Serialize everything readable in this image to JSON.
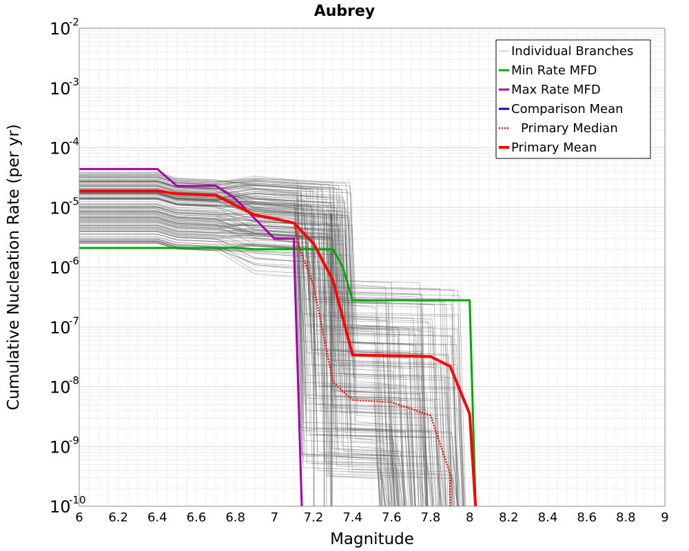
{
  "chart_data": {
    "type": "line",
    "title": "Aubrey",
    "xlabel": "Magnitude",
    "ylabel": "Cumulative Nucleation Rate (per yr)",
    "xlim": [
      6,
      9
    ],
    "ylim": [
      1e-10,
      0.01
    ],
    "yscale": "log",
    "grid": true,
    "legend_position": "top-right",
    "x_ticks": [
      "6",
      "6.2",
      "6.4",
      "6.6",
      "6.8",
      "7",
      "7.2",
      "7.4",
      "7.6",
      "7.8",
      "8",
      "8.2",
      "8.4",
      "8.6",
      "8.8",
      "9"
    ],
    "y_ticks": [
      {
        "base": "10",
        "exp": "-10",
        "value": 1e-10
      },
      {
        "base": "10",
        "exp": "-9",
        "value": 1e-09
      },
      {
        "base": "10",
        "exp": "-8",
        "value": 1e-08
      },
      {
        "base": "10",
        "exp": "-7",
        "value": 1e-07
      },
      {
        "base": "10",
        "exp": "-6",
        "value": 1e-06
      },
      {
        "base": "10",
        "exp": "-5",
        "value": 1e-05
      },
      {
        "base": "10",
        "exp": "-4",
        "value": 0.0001
      },
      {
        "base": "10",
        "exp": "-3",
        "value": 0.001
      },
      {
        "base": "10",
        "exp": "-2",
        "value": 0.01
      }
    ],
    "series": [
      {
        "name": "Individual Branches",
        "color": "#555555",
        "style": "thin",
        "note": "many overlapping branch curves",
        "envelope_upper": [
          [
            6.0,
            4e-05
          ],
          [
            6.4,
            4e-05
          ],
          [
            6.5,
            3.1e-05
          ],
          [
            6.7,
            3.1e-05
          ],
          [
            6.9,
            1e-05
          ],
          [
            7.2,
            1e-05
          ],
          [
            7.3,
            8e-06
          ],
          [
            7.35,
            6e-07
          ],
          [
            7.9,
            6e-07
          ],
          [
            8.0,
            1e-10
          ]
        ],
        "envelope_lower": [
          [
            6.0,
            2.5e-06
          ],
          [
            7.0,
            2.5e-06
          ],
          [
            7.1,
            2e-06
          ],
          [
            7.15,
            1e-10
          ]
        ]
      },
      {
        "name": "Min Rate MFD",
        "color": "#00aa00",
        "style": "solid",
        "x": [
          6.0,
          6.8,
          6.9,
          7.3,
          7.35,
          7.4,
          8.0,
          8.0,
          8.03
        ],
        "y": [
          2.1e-06,
          2.1e-06,
          2e-06,
          2e-06,
          1e-06,
          2.8e-07,
          2.8e-07,
          2.7e-07,
          1e-10
        ]
      },
      {
        "name": "Max Rate MFD",
        "color": "#aa00aa",
        "style": "solid",
        "x": [
          6.0,
          6.4,
          6.5,
          6.7,
          6.8,
          6.9,
          7.0,
          7.1,
          7.1,
          7.14
        ],
        "y": [
          4.4e-05,
          4.4e-05,
          2.3e-05,
          2.3e-05,
          1.4e-05,
          6.5e-06,
          3e-06,
          3e-06,
          2e-06,
          1e-10
        ]
      },
      {
        "name": "Comparison Mean",
        "color": "#0000cc",
        "style": "solid",
        "x": [],
        "y": []
      },
      {
        "name": "Primary Median",
        "color": "#ff0000",
        "style": "dotted",
        "x": [
          6.0,
          6.4,
          6.5,
          6.7,
          6.9,
          7.1,
          7.13,
          7.2,
          7.3,
          7.4,
          7.6,
          7.8,
          7.9,
          7.9
        ],
        "y": [
          1.9e-05,
          1.9e-05,
          1.7e-05,
          1.6e-05,
          7.2e-06,
          5.5e-06,
          2e-06,
          5e-07,
          1.2e-08,
          6e-09,
          5.5e-09,
          3.3e-09,
          3.5e-10,
          1e-10
        ]
      },
      {
        "name": "Primary Mean",
        "color": "#ff0000",
        "style": "thick",
        "x": [
          6.0,
          6.4,
          6.5,
          6.7,
          6.9,
          7.0,
          7.1,
          7.2,
          7.3,
          7.4,
          7.6,
          7.8,
          7.9,
          8.0,
          8.03
        ],
        "y": [
          1.9e-05,
          1.9e-05,
          1.7e-05,
          1.6e-05,
          7.5e-06,
          6.5e-06,
          5.5e-06,
          2.5e-06,
          6e-07,
          3.4e-08,
          3.3e-08,
          3.2e-08,
          2.2e-08,
          3.5e-09,
          1e-10
        ]
      }
    ]
  }
}
